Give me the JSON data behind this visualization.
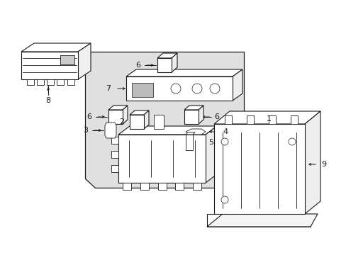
{
  "bg_color": "#ffffff",
  "line_color": "#1a1a1a",
  "shaded_color": "#e0e0e0",
  "fig_width": 4.89,
  "fig_height": 3.6,
  "dpi": 100
}
